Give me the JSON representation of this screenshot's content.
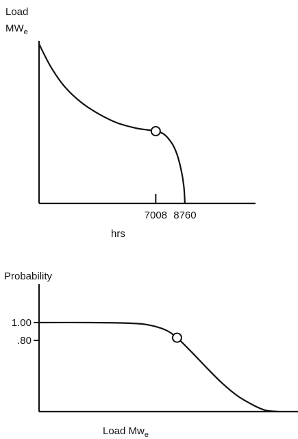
{
  "chart_data": [
    {
      "type": "line",
      "ylabel_line1": "Load",
      "ylabel_line2_main": "MW",
      "ylabel_line2_sub": "e",
      "xlabel": "hrs",
      "xticks": [
        {
          "value": 7008,
          "label": "7008"
        },
        {
          "value": 8760,
          "label": "8760"
        }
      ],
      "xlim": [
        0,
        13000
      ],
      "ylim": [
        0,
        1.0
      ],
      "series": [
        {
          "x": [
            0,
            700,
            1500,
            2500,
            3600,
            4700,
            5800,
            6500,
            7008,
            7500,
            8000,
            8300,
            8550,
            8700,
            8760
          ],
          "y": [
            0.99,
            0.85,
            0.73,
            0.63,
            0.555,
            0.5,
            0.468,
            0.457,
            0.449,
            0.43,
            0.37,
            0.3,
            0.2,
            0.1,
            0.0
          ]
        }
      ],
      "marker": {
        "x": 7008,
        "y": 0.449
      }
    },
    {
      "type": "line",
      "ylabel": "Probability",
      "xlabel_main": "Load Mw",
      "xlabel_sub": "e",
      "yticks": [
        {
          "value": 1.0,
          "label": "1.00"
        },
        {
          "value": 0.8,
          "label": ".80"
        }
      ],
      "xlim": [
        0,
        100
      ],
      "ylim": [
        0,
        1.4
      ],
      "series": [
        {
          "x": [
            0,
            20,
            33,
            40,
            45,
            50,
            54,
            60,
            66,
            72,
            78,
            84,
            88,
            91,
            94
          ],
          "y": [
            1.0,
            1.0,
            0.995,
            0.985,
            0.96,
            0.91,
            0.83,
            0.66,
            0.48,
            0.31,
            0.17,
            0.07,
            0.02,
            0.005,
            0.0
          ]
        }
      ],
      "marker": {
        "x": 54,
        "y": 0.83
      }
    }
  ]
}
